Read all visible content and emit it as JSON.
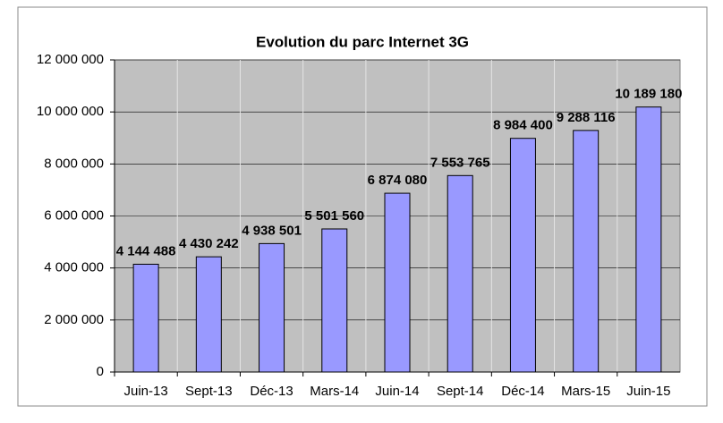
{
  "chart_data": {
    "type": "bar",
    "title": "Evolution du parc Internet 3G",
    "categories": [
      "Juin-13",
      "Sept-13",
      "Déc-13",
      "Mars-14",
      "Juin-14",
      "Sept-14",
      "Déc-14",
      "Mars-15",
      "Juin-15"
    ],
    "values": [
      4144488,
      4430242,
      4938501,
      5501560,
      6874080,
      7553765,
      8984400,
      9288116,
      10189180
    ],
    "value_labels": [
      "4 144 488",
      "4 430 242",
      "4 938 501",
      "5 501 560",
      "6 874 080",
      "7 553 765",
      "8 984 400",
      "9 288 116",
      "10 189 180"
    ],
    "color": "#9999ff",
    "ylim": [
      0,
      12000000
    ],
    "yticks": [
      0,
      {
        "value": 2000000,
        "label": "2 000 000"
      },
      {
        "value": 4000000,
        "label": "4 000 000"
      },
      {
        "value": 6000000,
        "label": "6 000 000"
      },
      {
        "value": 8000000,
        "label": "8 000 000"
      },
      {
        "value": 10000000,
        "label": "10 000 000"
      },
      {
        "value": 12000000,
        "label": "12 000 000"
      }
    ],
    "grid": true
  }
}
